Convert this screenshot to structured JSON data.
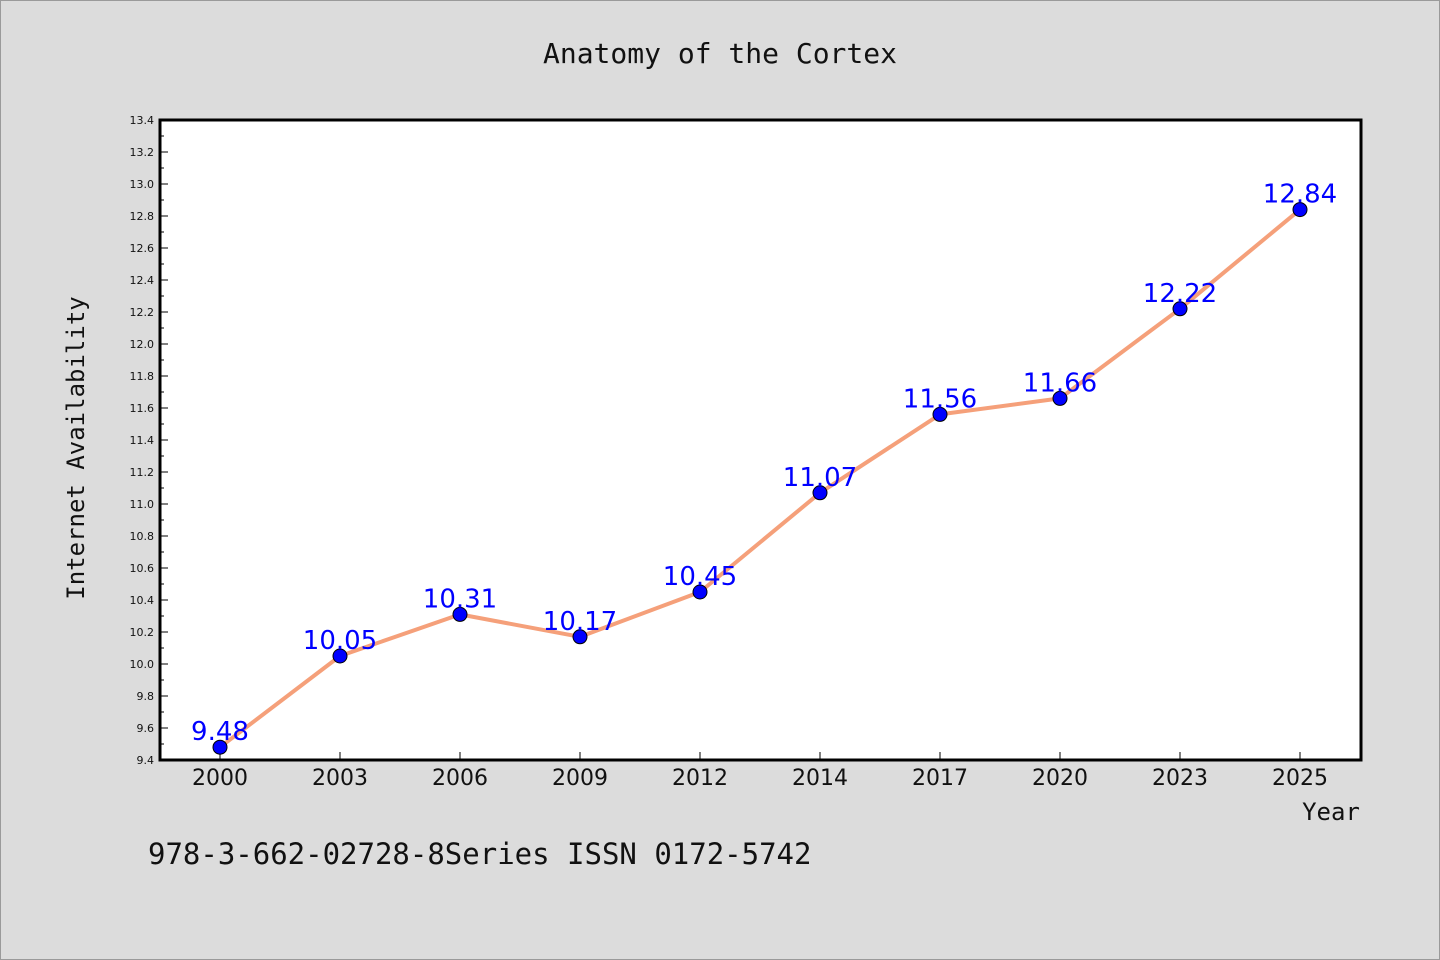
{
  "chart_data": {
    "type": "line",
    "title": "Anatomy of the Cortex",
    "xlabel": "Year",
    "ylabel": "Internet Availability",
    "categories": [
      "2000",
      "2003",
      "2006",
      "2009",
      "2012",
      "2014",
      "2017",
      "2020",
      "2023",
      "2025"
    ],
    "series": [
      {
        "values": [
          9.48,
          10.05,
          10.31,
          10.17,
          10.45,
          11.07,
          11.56,
          11.66,
          12.22,
          12.84
        ],
        "line_color": "#f5a07a",
        "marker_color": "#0000ff"
      }
    ],
    "data_labels": [
      "9.48",
      "10.05",
      "10.31",
      "10.17",
      "10.45",
      "11.07",
      "11.56",
      "11.66",
      "12.22",
      "12.84"
    ],
    "label_color": "#0000ff",
    "ylim": [
      9.4,
      13.4
    ],
    "ytick_labels": [
      "9.4",
      "9.6",
      "9.8",
      "10.0",
      "10.2",
      "10.4",
      "10.6",
      "10.8",
      "11.0",
      "11.2",
      "11.4",
      "11.6",
      "11.8",
      "12.0",
      "12.2",
      "12.4",
      "12.6",
      "12.8",
      "13.0",
      "13.2",
      "13.4"
    ],
    "grid": false,
    "legend": "none"
  },
  "footer": {
    "text": "978-3-662-02728-8Series ISSN 0172-5742"
  }
}
